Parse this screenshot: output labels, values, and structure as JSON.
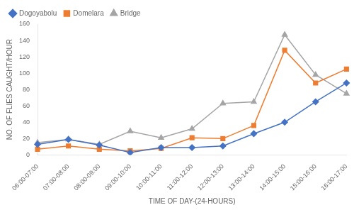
{
  "chart_data": {
    "type": "line",
    "categories": [
      "06:00-07:00",
      "07:00-08:00",
      "08:00-09:00",
      "09:00-10:00",
      "10:00-11:00",
      "11:00-12:00",
      "12:00-13:00",
      "13:00-14:00",
      "14:00-15:00",
      "15:00-16:00",
      "16:00-17:00"
    ],
    "series": [
      {
        "name": "Dogoyabolu",
        "color": "#4472C4",
        "marker": "diamond",
        "values": [
          13,
          19,
          12,
          3,
          9,
          9,
          11,
          26,
          40,
          65,
          88
        ]
      },
      {
        "name": "Domelara",
        "color": "#ED7D31",
        "marker": "square",
        "values": [
          7,
          11,
          7,
          5,
          8,
          21,
          20,
          36,
          128,
          88,
          105
        ]
      },
      {
        "name": "Bridge",
        "color": "#A5A5A5",
        "marker": "triangle",
        "values": [
          15,
          19,
          13,
          29,
          21,
          32,
          63,
          65,
          147,
          98,
          75
        ]
      }
    ],
    "xlabel": "TIME OF DAY-(24-HOURS)",
    "ylabel": "NO. OF FLIES CAUGHT/HOUR",
    "ylim": [
      0,
      160
    ],
    "yticks": [
      0,
      20,
      40,
      60,
      80,
      100,
      120,
      140,
      160
    ],
    "grid": false,
    "legend": "upper left"
  }
}
